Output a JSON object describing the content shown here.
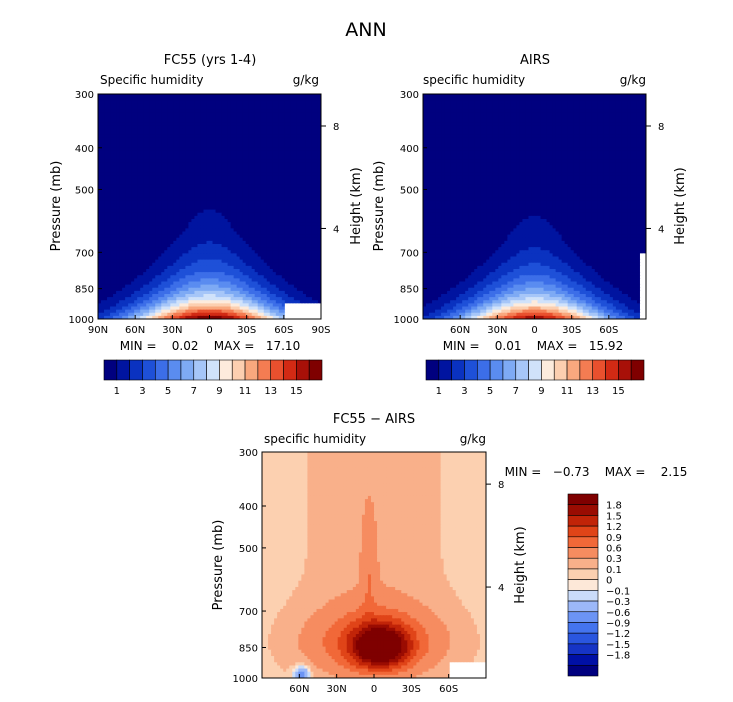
{
  "figure": {
    "title": "ANN"
  },
  "colors": {
    "abs_scale": [
      "#00007f",
      "#0014a0",
      "#0a32c0",
      "#1e50d8",
      "#3c6ee8",
      "#5a8cf0",
      "#7eaaf4",
      "#a6c6f8",
      "#d0e2fa",
      "#fdebdc",
      "#fccfb0",
      "#f9a87e",
      "#f47c52",
      "#e9502e",
      "#d22a14",
      "#a81008",
      "#7f0000"
    ],
    "diff_scale": [
      "#00007f",
      "#0010a6",
      "#1634c6",
      "#2a56df",
      "#4474ee",
      "#6c94f4",
      "#9cb8f8",
      "#cadcfa",
      "#fde8d8",
      "#fcd0b0",
      "#f9b08a",
      "#f68c60",
      "#f16838",
      "#e04418",
      "#c12408",
      "#9a0c02",
      "#7f0000"
    ]
  },
  "chart_data": [
    {
      "id": "fc55",
      "type": "heatmap",
      "title": "FC55 (yrs 1-4)",
      "subtitle_left": "Specific humidity",
      "subtitle_right": "g/kg",
      "ylabel": "Pressure (mb)",
      "y2label": "Height (km)",
      "x_ticks": [
        "90N",
        "60N",
        "30N",
        "0",
        "30S",
        "60S",
        "90S"
      ],
      "x_range": [
        90,
        -90
      ],
      "y_ticks": [
        "300",
        "400",
        "500",
        "700",
        "850",
        "1000"
      ],
      "y_range": [
        300,
        1000
      ],
      "y_log": true,
      "y2_ticks": [
        "8",
        "4"
      ],
      "stats_text": "MIN =    0.02    MAX =   17.10",
      "min": 0.02,
      "max": 17.1,
      "field": {
        "peak": 17.1,
        "peak_lat": 0,
        "surface_p": 1000,
        "lat_width_surface": 62,
        "scale_height_p": 210,
        "nodata_box": {
          "lat": [
            -60,
            -90
          ],
          "p": [
            925,
            1000
          ]
        }
      },
      "colorbar": {
        "orientation": "horizontal",
        "levels": [
          0,
          1,
          2,
          3,
          4,
          5,
          6,
          7,
          8,
          9,
          10,
          11,
          12,
          13,
          14,
          15,
          16
        ],
        "tick_labels": [
          "1",
          "3",
          "5",
          "7",
          "9",
          "11",
          "13",
          "15"
        ]
      }
    },
    {
      "id": "airs",
      "type": "heatmap",
      "title": "AIRS",
      "subtitle_left": "specific humidity",
      "subtitle_right": "g/kg",
      "ylabel": "Pressure (mb)",
      "y2label": "Height (km)",
      "x_ticks": [
        "60N",
        "30N",
        "0",
        "30S",
        "60S"
      ],
      "x_range": [
        90,
        -90
      ],
      "y_ticks": [
        "300",
        "400",
        "500",
        "700",
        "850",
        "1000"
      ],
      "y_range": [
        300,
        1000
      ],
      "y_log": true,
      "y2_ticks": [
        "8",
        "4"
      ],
      "stats_text": "MIN =    0.01    MAX =   15.92",
      "min": 0.01,
      "max": 15.92,
      "field": {
        "peak": 15.92,
        "peak_lat": 0,
        "surface_p": 1000,
        "lat_width_surface": 60,
        "scale_height_p": 205,
        "nodata_box": {
          "lat": [
            -84,
            -90
          ],
          "p": [
            700,
            1000
          ]
        }
      },
      "colorbar": {
        "orientation": "horizontal",
        "levels": [
          0,
          1,
          2,
          3,
          4,
          5,
          6,
          7,
          8,
          9,
          10,
          11,
          12,
          13,
          14,
          15,
          16
        ],
        "tick_labels": [
          "1",
          "3",
          "5",
          "7",
          "9",
          "11",
          "13",
          "15"
        ]
      }
    },
    {
      "id": "diff",
      "type": "heatmap",
      "title": "FC55 − AIRS",
      "subtitle_left": "specific humidity",
      "subtitle_right": "g/kg",
      "ylabel": "Pressure (mb)",
      "y2label": "Height (km)",
      "x_ticks": [
        "60N",
        "30N",
        "0",
        "30S",
        "60S"
      ],
      "x_range": [
        90,
        -90
      ],
      "y_ticks": [
        "300",
        "400",
        "500",
        "700",
        "850",
        "1000"
      ],
      "y_range": [
        300,
        1000
      ],
      "y_log": true,
      "y2_ticks": [
        "8",
        "4"
      ],
      "stats_text": "MIN =   −0.73    MAX =    2.15",
      "min": -0.73,
      "max": 2.15,
      "field": {
        "peak": 2.15,
        "peak_lat": -5,
        "peak_p": 850,
        "nodata_box": {
          "lat": [
            -60,
            -90
          ],
          "p": [
            925,
            1000
          ]
        }
      },
      "colorbar": {
        "orientation": "vertical",
        "tick_labels": [
          "1.8",
          "1.5",
          "1.2",
          "0.9",
          "0.6",
          "0.3",
          "0.1",
          "0",
          "−0.1",
          "−0.3",
          "−0.6",
          "−0.9",
          "−1.2",
          "−1.5",
          "−1.8"
        ]
      }
    }
  ]
}
